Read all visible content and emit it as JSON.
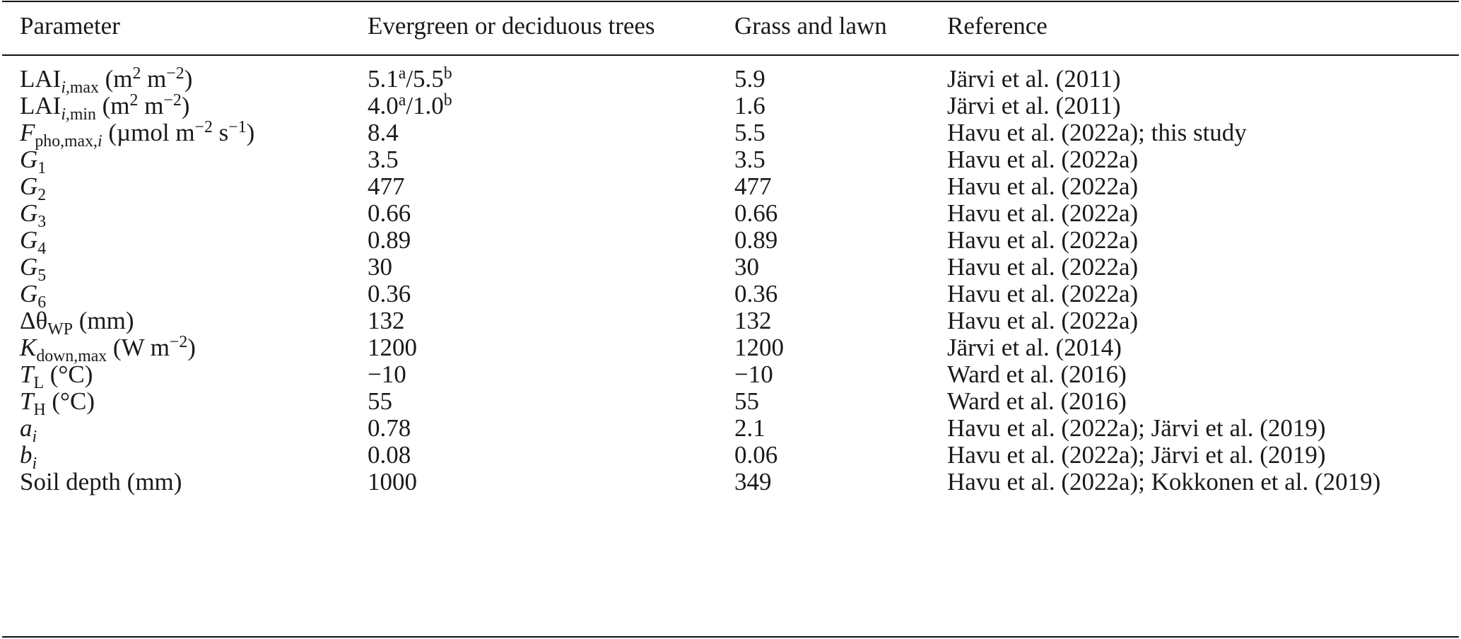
{
  "header": {
    "parameter": "Parameter",
    "trees": "Evergreen or deciduous trees",
    "grass": "Grass and lawn",
    "reference": "Reference"
  },
  "rows": [
    {
      "param": {
        "main": "LAI",
        "main_italic": false,
        "sub": "i,",
        "sub_italic": true,
        "sub2": "max",
        "unit_pre": " (m",
        "sup1": "2",
        "unit_mid": " m",
        "sup2": "−2",
        "unit_mid2": "",
        "sup3": "",
        "unit_post": ")"
      },
      "trees": {
        "v1": "5.1",
        "s1": "a",
        "sep": "/",
        "v2": "5.5",
        "s2": "b"
      },
      "grass": "5.9",
      "reference": "Järvi et al. (2011)"
    },
    {
      "param": {
        "main": "LAI",
        "main_italic": false,
        "sub": "i,",
        "sub_italic": true,
        "sub2": "min",
        "unit_pre": " (m",
        "sup1": "2",
        "unit_mid": " m",
        "sup2": "−2",
        "unit_mid2": "",
        "sup3": "",
        "unit_post": ")"
      },
      "trees": {
        "v1": "4.0",
        "s1": "a",
        "sep": "/",
        "v2": "1.0",
        "s2": "b"
      },
      "grass": "1.6",
      "reference": "Järvi et al. (2011)"
    },
    {
      "param": {
        "main": "F",
        "main_italic": true,
        "sub": "",
        "sub_italic": false,
        "sub2": "pho,max,",
        "sub3": "i",
        "unit_pre": " (µmol m",
        "sup1": "−2",
        "unit_mid": " s",
        "sup2": "−1",
        "unit_mid2": "",
        "sup3": "",
        "unit_post": ")"
      },
      "trees": {
        "v1": "8.4",
        "s1": "",
        "sep": "",
        "v2": "",
        "s2": ""
      },
      "grass": "5.5",
      "reference": "Havu et al. (2022a); this study"
    },
    {
      "param": {
        "main": "G",
        "main_italic": true,
        "sub": "",
        "sub_italic": false,
        "sub2": "1",
        "unit_pre": "",
        "sup1": "",
        "unit_mid": "",
        "sup2": "",
        "unit_mid2": "",
        "sup3": "",
        "unit_post": ""
      },
      "trees": {
        "v1": "3.5",
        "s1": "",
        "sep": "",
        "v2": "",
        "s2": ""
      },
      "grass": "3.5",
      "reference": "Havu et al. (2022a)"
    },
    {
      "param": {
        "main": "G",
        "main_italic": true,
        "sub": "",
        "sub_italic": false,
        "sub2": "2",
        "unit_pre": "",
        "sup1": "",
        "unit_mid": "",
        "sup2": "",
        "unit_mid2": "",
        "sup3": "",
        "unit_post": ""
      },
      "trees": {
        "v1": "477",
        "s1": "",
        "sep": "",
        "v2": "",
        "s2": ""
      },
      "grass": "477",
      "reference": "Havu et al. (2022a)"
    },
    {
      "param": {
        "main": "G",
        "main_italic": true,
        "sub": "",
        "sub_italic": false,
        "sub2": "3",
        "unit_pre": "",
        "sup1": "",
        "unit_mid": "",
        "sup2": "",
        "unit_mid2": "",
        "sup3": "",
        "unit_post": ""
      },
      "trees": {
        "v1": "0.66",
        "s1": "",
        "sep": "",
        "v2": "",
        "s2": ""
      },
      "grass": "0.66",
      "reference": "Havu et al. (2022a)"
    },
    {
      "param": {
        "main": "G",
        "main_italic": true,
        "sub": "",
        "sub_italic": false,
        "sub2": "4",
        "unit_pre": "",
        "sup1": "",
        "unit_mid": "",
        "sup2": "",
        "unit_mid2": "",
        "sup3": "",
        "unit_post": ""
      },
      "trees": {
        "v1": "0.89",
        "s1": "",
        "sep": "",
        "v2": "",
        "s2": ""
      },
      "grass": "0.89",
      "reference": "Havu et al. (2022a)"
    },
    {
      "param": {
        "main": "G",
        "main_italic": true,
        "sub": "",
        "sub_italic": false,
        "sub2": "5",
        "unit_pre": "",
        "sup1": "",
        "unit_mid": "",
        "sup2": "",
        "unit_mid2": "",
        "sup3": "",
        "unit_post": ""
      },
      "trees": {
        "v1": "30",
        "s1": "",
        "sep": "",
        "v2": "",
        "s2": ""
      },
      "grass": "30",
      "reference": "Havu et al. (2022a)"
    },
    {
      "param": {
        "main": "G",
        "main_italic": true,
        "sub": "",
        "sub_italic": false,
        "sub2": "6",
        "unit_pre": "",
        "sup1": "",
        "unit_mid": "",
        "sup2": "",
        "unit_mid2": "",
        "sup3": "",
        "unit_post": ""
      },
      "trees": {
        "v1": "0.36",
        "s1": "",
        "sep": "",
        "v2": "",
        "s2": ""
      },
      "grass": "0.36",
      "reference": "Havu et al. (2022a)"
    },
    {
      "param": {
        "main": "Δθ",
        "main_italic": false,
        "theta": true,
        "sub": "",
        "sub_italic": false,
        "sub2": "WP",
        "unit_pre": " (mm)",
        "sup1": "",
        "unit_mid": "",
        "sup2": "",
        "unit_mid2": "",
        "sup3": "",
        "unit_post": ""
      },
      "trees": {
        "v1": "132",
        "s1": "",
        "sep": "",
        "v2": "",
        "s2": ""
      },
      "grass": "132",
      "reference": "Havu et al. (2022a)"
    },
    {
      "param": {
        "main": "K",
        "main_italic": true,
        "sub": "",
        "sub_italic": false,
        "sub2": "down,max",
        "unit_pre": " (W m",
        "sup1": "−2",
        "unit_mid": ")",
        "sup2": "",
        "unit_mid2": "",
        "sup3": "",
        "unit_post": ""
      },
      "trees": {
        "v1": "1200",
        "s1": "",
        "sep": "",
        "v2": "",
        "s2": ""
      },
      "grass": "1200",
      "reference": "Järvi et al. (2014)"
    },
    {
      "param": {
        "main": "T",
        "main_italic": true,
        "sub": "",
        "sub_italic": false,
        "sub2": "L",
        "unit_pre": " (°C)",
        "sup1": "",
        "unit_mid": "",
        "sup2": "",
        "unit_mid2": "",
        "sup3": "",
        "unit_post": ""
      },
      "trees": {
        "v1": "−10",
        "s1": "",
        "sep": "",
        "v2": "",
        "s2": ""
      },
      "grass": "−10",
      "reference": "Ward et al. (2016)"
    },
    {
      "param": {
        "main": "T",
        "main_italic": true,
        "sub": "",
        "sub_italic": false,
        "sub2": "H",
        "unit_pre": " (°C)",
        "sup1": "",
        "unit_mid": "",
        "sup2": "",
        "unit_mid2": "",
        "sup3": "",
        "unit_post": ""
      },
      "trees": {
        "v1": "55",
        "s1": "",
        "sep": "",
        "v2": "",
        "s2": ""
      },
      "grass": "55",
      "reference": "Ward et al. (2016)"
    },
    {
      "param": {
        "main": "a",
        "main_italic": true,
        "sub": "i",
        "sub_italic": true,
        "sub2": "",
        "unit_pre": "",
        "sup1": "",
        "unit_mid": "",
        "sup2": "",
        "unit_mid2": "",
        "sup3": "",
        "unit_post": ""
      },
      "trees": {
        "v1": "0.78",
        "s1": "",
        "sep": "",
        "v2": "",
        "s2": ""
      },
      "grass": "2.1",
      "reference": "Havu et al. (2022a); Järvi et al. (2019)"
    },
    {
      "param": {
        "main": "b",
        "main_italic": true,
        "sub": "i",
        "sub_italic": true,
        "sub2": "",
        "unit_pre": "",
        "sup1": "",
        "unit_mid": "",
        "sup2": "",
        "unit_mid2": "",
        "sup3": "",
        "unit_post": ""
      },
      "trees": {
        "v1": "0.08",
        "s1": "",
        "sep": "",
        "v2": "",
        "s2": ""
      },
      "grass": "0.06",
      "reference": "Havu et al. (2022a); Järvi et al. (2019)"
    },
    {
      "param": {
        "main": "Soil depth (mm)",
        "main_italic": false,
        "sub": "",
        "sub_italic": false,
        "sub2": "",
        "unit_pre": "",
        "sup1": "",
        "unit_mid": "",
        "sup2": "",
        "unit_mid2": "",
        "sup3": "",
        "unit_post": ""
      },
      "trees": {
        "v1": "1000",
        "s1": "",
        "sep": "",
        "v2": "",
        "s2": ""
      },
      "grass": "349",
      "reference": "Havu et al. (2022a); Kokkonen et al. (2019)"
    }
  ]
}
